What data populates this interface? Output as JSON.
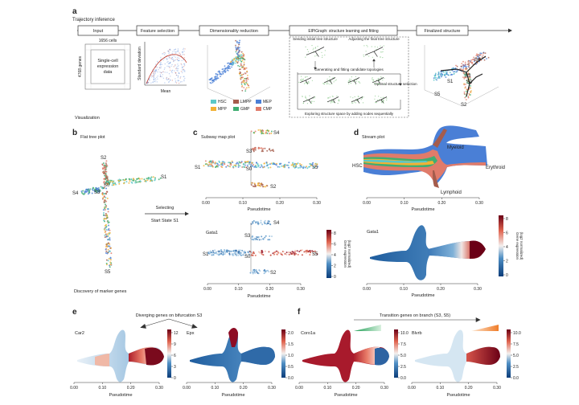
{
  "panels": {
    "a": {
      "letter": "a",
      "title": "Trajectory inference",
      "steps": [
        "Input",
        "Feature selection",
        "Dimensionality reduction",
        "ElPiGraph: structure learning and fitting",
        "Finalized structure"
      ],
      "input": {
        "cells": "1656 cells",
        "genes": "4768 genes",
        "data": [
          "Single-cell",
          "expression",
          "data"
        ]
      },
      "feature_axes": {
        "y": "Standard deviation",
        "x": "Mean"
      },
      "elpi_notes": [
        "Seeding initial tree structure",
        "Adjusting the final tree structure",
        "Generating and fitting candidate topologies",
        "Optimal structure selection",
        "Exploring structure space by adding nodes sequentially"
      ],
      "legend": [
        {
          "label": "HSC",
          "color": "#5bc8c8"
        },
        {
          "label": "MPP",
          "color": "#f2b134"
        },
        {
          "label": "LMPP",
          "color": "#a55c4c"
        },
        {
          "label": "GMP",
          "color": "#3fae72"
        },
        {
          "label": "MEP",
          "color": "#4a7fd6"
        },
        {
          "label": "CMP",
          "color": "#e07b6a"
        }
      ],
      "final_labels": [
        "S4",
        "S1",
        "S3",
        "S0",
        "S5",
        "S2"
      ]
    },
    "visualization_label": "Visualization",
    "b": {
      "letter": "b",
      "title": "Flat tree plot",
      "labels": [
        "S2",
        "S1",
        "S0",
        "S4",
        "S3",
        "S5"
      ],
      "footer": "Discovery of marker genes"
    },
    "selecting": {
      "line1": "Selecting",
      "line2": "Start State S1"
    },
    "c": {
      "letter": "c",
      "title": "Subway map plot",
      "gene": "Gata1",
      "labels_top": [
        "S4",
        "S3",
        "S1",
        "S0",
        "S5",
        "S2"
      ],
      "labels_bottom": [
        "S4",
        "S3",
        "S1",
        "S0",
        "S5",
        "S2"
      ],
      "xlabel": "Pseudotime",
      "xticks": [
        "0.00",
        "0.10",
        "0.20",
        "0.30"
      ],
      "colorbar_label": [
        "Gene expression",
        "(log2 normalized)"
      ],
      "colorbar_ticks": [
        "8",
        "6",
        "4",
        "2",
        "0"
      ]
    },
    "d": {
      "letter": "d",
      "title": "Stream plot",
      "gene": "Gata1",
      "labels": [
        "HSC",
        "Myeloid",
        "Erythroid",
        "Lymphoid"
      ],
      "xlabel": "Pseudotime",
      "xticks": [
        "0.00",
        "0.10",
        "0.20",
        "0.30"
      ],
      "colorbar_label": [
        "Gene expression",
        "(log2 normalized)"
      ],
      "colorbar_ticks": [
        "8",
        "6",
        "4",
        "2",
        "0"
      ]
    },
    "e": {
      "letter": "e",
      "header": "Diverging genes on bifurcation S3",
      "genes": [
        "Car2",
        "Epx"
      ],
      "xlabel": "Pseudotime",
      "xticks": [
        "0.00",
        "0.10",
        "0.20",
        "0.30"
      ],
      "cbar1_ticks": [
        "12",
        "9",
        "6",
        "3",
        "0"
      ],
      "cbar2_ticks": [
        "2.0",
        "1.5",
        "1.0",
        "0.5",
        "0.0"
      ]
    },
    "f": {
      "letter": "f",
      "header": "Transition genes on branch (S3, S5)",
      "genes": [
        "Coro1a",
        "Blvrb"
      ],
      "xlabel": "Pseudotime",
      "xticks": [
        "0.00",
        "0.10",
        "0.20",
        "0.30"
      ],
      "cbar1_ticks": [
        "10.0",
        "7.5",
        "5.0",
        "2.5",
        "0.0"
      ],
      "cbar2_ticks": [
        "10.0",
        "7.5",
        "5.0",
        "2.5",
        "0.0"
      ]
    }
  }
}
